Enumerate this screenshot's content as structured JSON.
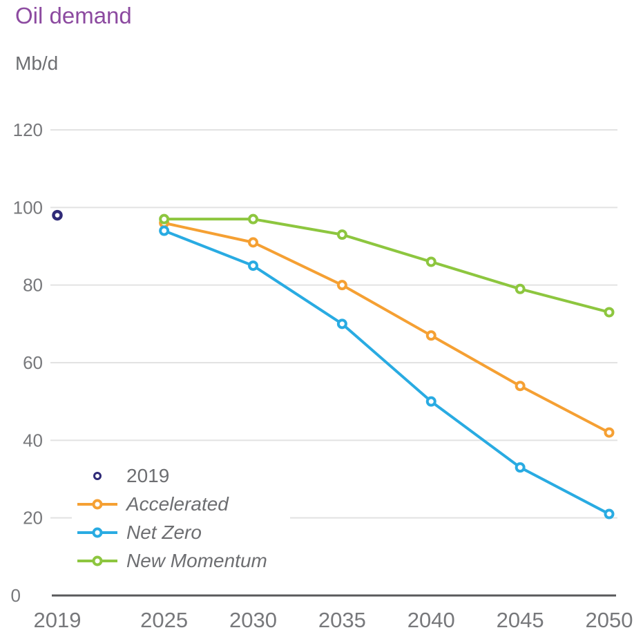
{
  "title": "Oil demand",
  "unit_label": "Mb/d",
  "colors": {
    "title": "#8c4aa0",
    "unit_text": "#6d6e71",
    "axis_text": "#77787b",
    "axis_line": "#58595b",
    "gridline": "#e2e2e2",
    "legend_text": "#6d6e71",
    "point_2019": "#302b78",
    "accelerated": "#f5a033",
    "net_zero": "#29abe2",
    "new_momentum": "#8dc63f"
  },
  "chart_data": {
    "type": "line",
    "title": "Oil demand",
    "xlabel": "",
    "ylabel": "Mb/d",
    "x": [
      2025,
      2030,
      2035,
      2040,
      2045,
      2050
    ],
    "series": [
      {
        "name": "Accelerated",
        "color": "#f5a033",
        "values": [
          96,
          91,
          80,
          67,
          54,
          42
        ]
      },
      {
        "name": "Net Zero",
        "color": "#29abe2",
        "values": [
          94,
          85,
          70,
          50,
          33,
          21
        ]
      },
      {
        "name": "New Momentum",
        "color": "#8dc63f",
        "values": [
          97,
          97,
          93,
          86,
          79,
          73
        ]
      }
    ],
    "point": {
      "name": "2019",
      "x": 2019,
      "y": 98,
      "color": "#302b78"
    },
    "x_ticks": [
      2019,
      2025,
      2030,
      2035,
      2040,
      2045,
      2050
    ],
    "y_ticks": [
      0,
      20,
      40,
      60,
      80,
      100,
      120
    ],
    "xlim": [
      2019,
      2050
    ],
    "ylim": [
      0,
      120
    ],
    "grid": "horizontal-only",
    "legend_position": "inside-bottom-left"
  },
  "legend": {
    "items": [
      {
        "label": "2019",
        "swatch": "point",
        "color": "#302b78",
        "italic": false
      },
      {
        "label": "Accelerated",
        "swatch": "line",
        "color": "#f5a033",
        "italic": true
      },
      {
        "label": "Net Zero",
        "swatch": "line",
        "color": "#29abe2",
        "italic": true
      },
      {
        "label": "New Momentum",
        "swatch": "line",
        "color": "#8dc63f",
        "italic": true
      }
    ]
  }
}
